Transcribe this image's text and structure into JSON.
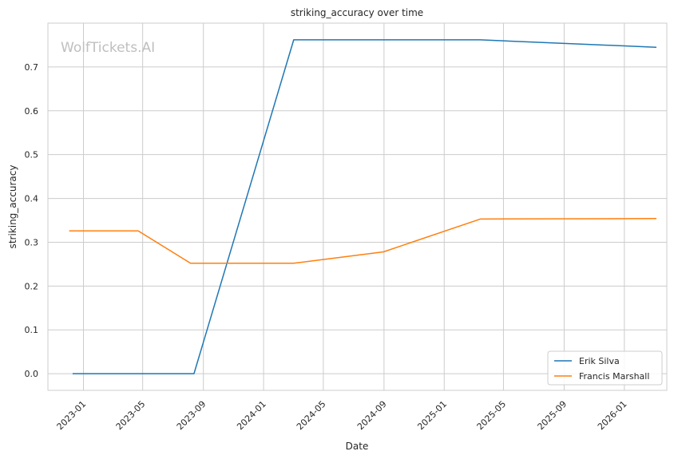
{
  "chart_data": {
    "type": "line",
    "title": "striking_accuracy over time",
    "xlabel": "Date",
    "ylabel": "striking_accuracy",
    "watermark": "WolfTickets.AI",
    "x_ticks": [
      "2023-01",
      "2023-05",
      "2023-09",
      "2024-01",
      "2024-05",
      "2024-09",
      "2025-01",
      "2025-05",
      "2025-09",
      "2026-01"
    ],
    "y_ticks": [
      "0.0",
      "0.1",
      "0.2",
      "0.3",
      "0.4",
      "0.5",
      "0.6",
      "0.7"
    ],
    "xlim": [
      "2022-10-21",
      "2026-03-28"
    ],
    "ylim": [
      -0.038,
      0.8
    ],
    "grid": true,
    "legend_position": "bottom-right",
    "series": [
      {
        "name": "Erik Silva",
        "color": "#1f77b4",
        "points": [
          {
            "x": "2022-12-10",
            "y": 0.0
          },
          {
            "x": "2023-08-13",
            "y": 0.0
          },
          {
            "x": "2024-03-02",
            "y": 0.762
          },
          {
            "x": "2025-03-15",
            "y": 0.762
          },
          {
            "x": "2026-03-07",
            "y": 0.745
          }
        ]
      },
      {
        "name": "Francis Marshall",
        "color": "#ff7f0e",
        "points": [
          {
            "x": "2022-12-03",
            "y": 0.326
          },
          {
            "x": "2023-04-22",
            "y": 0.326
          },
          {
            "x": "2023-08-06",
            "y": 0.252
          },
          {
            "x": "2024-03-02",
            "y": 0.252
          },
          {
            "x": "2024-08-31",
            "y": 0.278
          },
          {
            "x": "2025-03-15",
            "y": 0.353
          },
          {
            "x": "2026-03-07",
            "y": 0.354
          }
        ]
      }
    ]
  }
}
